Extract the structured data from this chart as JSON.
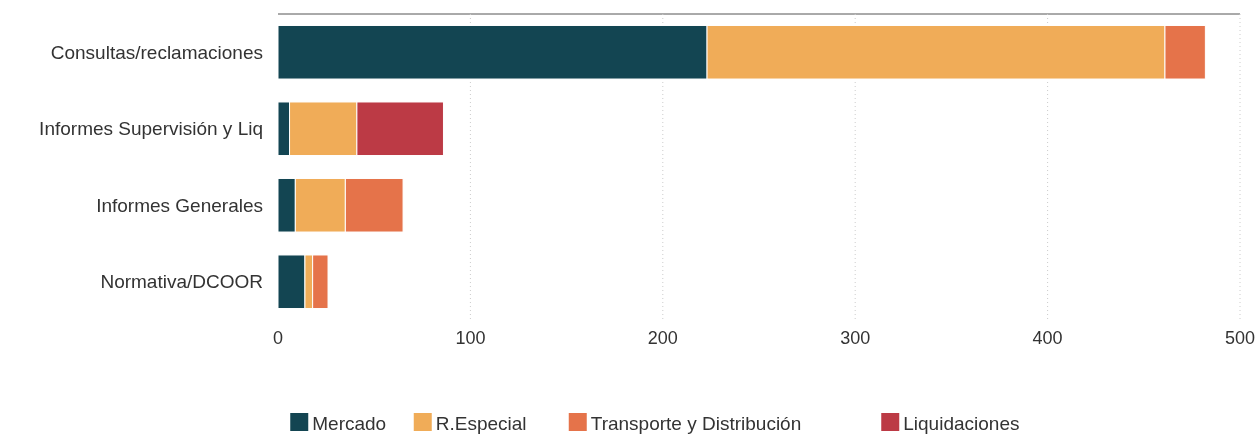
{
  "chart_data": {
    "type": "bar",
    "orientation": "horizontal",
    "stacked": true,
    "categories": [
      "Consultas/reclamaciones",
      "Informes Supervisión y Liq",
      "Informes Generales",
      "Normativa/DCOOR"
    ],
    "series": [
      {
        "name": "Mercado",
        "color": "#134552",
        "values": [
          223,
          6,
          9,
          14
        ]
      },
      {
        "name": "R.Especial",
        "color": "#f0ac58",
        "values": [
          238,
          35,
          26,
          4
        ]
      },
      {
        "name": "Transporte y Distribución",
        "color": "#e5734a",
        "values": [
          21,
          null,
          30,
          8
        ]
      },
      {
        "name": "Liquidaciones",
        "color": "#bc3a45",
        "values": [
          null,
          45,
          null,
          null
        ]
      }
    ],
    "xlim": [
      0,
      500
    ],
    "xticks": [
      0,
      100,
      200,
      300,
      400,
      500
    ],
    "grid": "x",
    "legend": "bottom"
  }
}
